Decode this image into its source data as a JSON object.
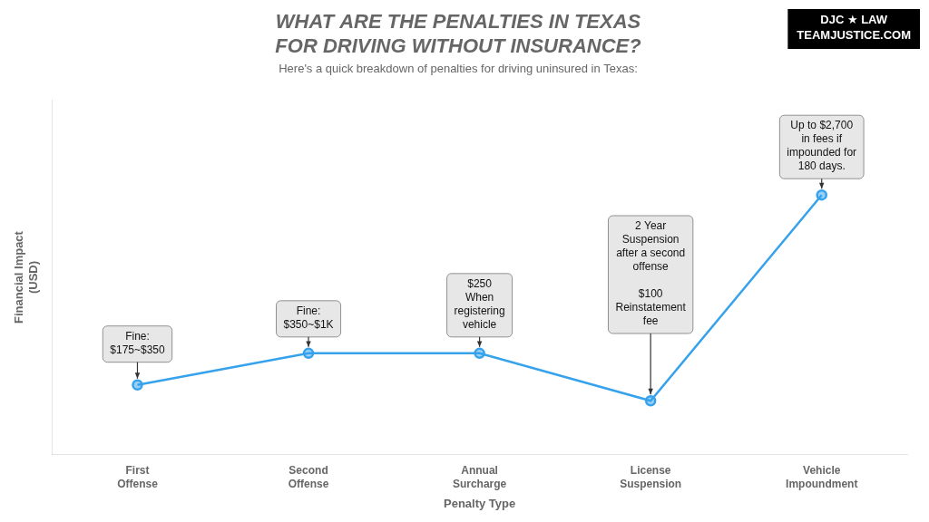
{
  "chart_data": {
    "type": "line",
    "title": "WHAT ARE THE PENALTIES IN TEXAS\nFOR DRIVING WITHOUT INSURANCE?",
    "subtitle": "Here's a quick breakdown of penalties for driving uninsured in Texas:",
    "xlabel": "Penalty Type",
    "ylabel": "Financial Impact\n(USD)",
    "categories": [
      "First\nOffense",
      "Second\nOffense",
      "Annual\nSurcharge",
      "License\nSuspension",
      "Vehicle\nImpoundment"
    ],
    "values": [
      1,
      2,
      2,
      0.5,
      7
    ],
    "ylim": [
      -1.2,
      10
    ],
    "grid": false,
    "tick_labels": "x",
    "marker": "circle",
    "annotations": [
      {
        "category": "First\nOffense",
        "text": "Fine:\n$175~$350"
      },
      {
        "category": "Second\nOffense",
        "text": "Fine:\n$350~$1K"
      },
      {
        "category": "Annual\nSurcharge",
        "text": "$250\nWhen\nregistering\nvehicle"
      },
      {
        "category": "License\nSuspension",
        "text": "2 Year\nSuspension\nafter a second\noffense\n\n$100\nReinstatement\nfee"
      },
      {
        "category": "Vehicle\nImpoundment",
        "text": "Up to $2,700\nin fees if\nimpounded for\n180 days."
      },
      {
        "text": "DJC ★ LAW\nTEAMJUSTICE.COM"
      }
    ]
  }
}
